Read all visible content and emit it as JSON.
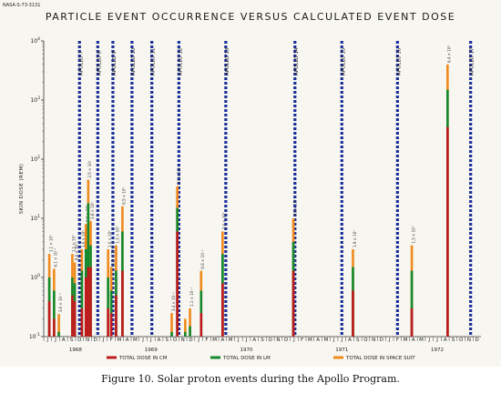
{
  "header": {
    "reference": "NASA-S-73-3131",
    "title": "PARTICLE EVENT OCCURRENCE VERSUS CALCULATED EVENT DOSE"
  },
  "caption": "Figure 10. Solar proton events during the Apollo Program.",
  "chart_data": {
    "type": "bar",
    "title": "PARTICLE EVENT OCCURRENCE VERSUS CALCULATED EVENT DOSE",
    "xlabel": "",
    "ylabel": "SKIN DOSE (REM)",
    "y_scale": "log",
    "ylim": [
      0.1,
      10000
    ],
    "y_ticks": [
      {
        "v": 0.1,
        "base": "10",
        "exp": "-1"
      },
      {
        "v": 1,
        "base": "10",
        "exp": "0"
      },
      {
        "v": 10,
        "base": "10",
        "exp": "1"
      },
      {
        "v": 100,
        "base": "10",
        "exp": "2"
      },
      {
        "v": 1000,
        "base": "10",
        "exp": "3"
      },
      {
        "v": 10000,
        "base": "10",
        "exp": "4"
      }
    ],
    "x_range": [
      0,
      54
    ],
    "month_labels": [
      "J",
      "J",
      "A",
      "S",
      "O",
      "N",
      "D",
      "J",
      "F",
      "M",
      "A",
      "M",
      "J",
      "J",
      "A",
      "S",
      "O",
      "N",
      "D",
      "J",
      "F",
      "M",
      "A",
      "M",
      "J",
      "J",
      "A",
      "S",
      "O",
      "N",
      "D",
      "J",
      "F",
      "M",
      "A",
      "M",
      "J",
      "J",
      "A",
      "S",
      "O",
      "N",
      "D",
      "J",
      "F",
      "M",
      "A",
      "M",
      "J",
      "J",
      "A",
      "S",
      "O",
      "N",
      "D"
    ],
    "year_labels": [
      {
        "label": "1968",
        "month": 3.5
      },
      {
        "label": "1969",
        "month": 13
      },
      {
        "label": "1970",
        "month": 25
      },
      {
        "label": "1971",
        "month": 37
      },
      {
        "label": "1972",
        "month": 49
      }
    ],
    "missions": [
      {
        "name": "APOLLO 7",
        "month": 4.0
      },
      {
        "name": "APOLLO 8",
        "month": 6.3
      },
      {
        "name": "APOLLO 9",
        "month": 8.2
      },
      {
        "name": "APOLLO 10",
        "month": 10.6
      },
      {
        "name": "APOLLO 11",
        "month": 13.1
      },
      {
        "name": "APOLLO 12",
        "month": 16.5
      },
      {
        "name": "APOLLO 13",
        "month": 22.4
      },
      {
        "name": "APOLLO 14",
        "month": 31.1
      },
      {
        "name": "APOLLO 15",
        "month": 37.0
      },
      {
        "name": "APOLLO 16",
        "month": 44.0
      },
      {
        "name": "APOLLO 17",
        "month": 53.2
      }
    ],
    "series": [
      {
        "name": "TOTAL DOSE IN CM",
        "color": "#c0191e"
      },
      {
        "name": "TOTAL DOSE IN LM",
        "color": "#138a2e"
      },
      {
        "name": "TOTAL DOSE IN SPACE SUIT",
        "color": "#f08a1c"
      }
    ],
    "events": [
      {
        "month": 0.2,
        "cm": 0.4,
        "lm": 1.0,
        "suit": 2.5,
        "label": "1.1 × 10⁰"
      },
      {
        "month": 0.8,
        "cm": 0.2,
        "lm": 0.6,
        "suit": 1.4,
        "label": "6.1 × 10⁻¹"
      },
      {
        "month": 1.4,
        "cm": 0.1,
        "lm": 0.12,
        "suit": 0.24,
        "label": "3.6 × 10⁻¹"
      },
      {
        "month": 3.1,
        "cm": 0.5,
        "lm": 1.0,
        "suit": 2.5,
        "label": "1.1 × 10⁰"
      },
      {
        "month": 3.4,
        "cm": 0.4,
        "lm": 0.8,
        "suit": 1.8,
        "label": "9.4 × 10⁻¹"
      },
      {
        "month": 4.3,
        "cm": 0.3,
        "lm": 1.3,
        "suit": 3.0,
        "label": "1.6 × 10⁰"
      },
      {
        "month": 4.8,
        "cm": 1.0,
        "lm": 3.0,
        "suit": 8.0,
        "label": "2.9 × 10⁰"
      },
      {
        "month": 5.1,
        "cm": 1.5,
        "lm": 18,
        "suit": 45,
        "label": "2.5 × 10¹"
      },
      {
        "month": 5.4,
        "cm": 1.5,
        "lm": 3.5,
        "suit": 9.0,
        "label": "3.8 × 10⁰"
      },
      {
        "month": 7.6,
        "cm": 0.3,
        "lm": 1.0,
        "suit": 3.0,
        "label": "1.0 × 10⁰"
      },
      {
        "month": 8.0,
        "cm": 0.25,
        "lm": 0.6,
        "suit": 1.5,
        "label": "6.9 × 10⁻¹"
      },
      {
        "month": 8.6,
        "cm": 0.5,
        "lm": 1.3,
        "suit": 3.5,
        "label": "1.3 × 10⁰"
      },
      {
        "month": 9.4,
        "cm": 1.3,
        "lm": 6.0,
        "suit": 16,
        "label": "6.5 × 10⁰"
      },
      {
        "month": 15.6,
        "cm": 0.1,
        "lm": 0.12,
        "suit": 0.25,
        "label": "3.4 × 10⁻¹"
      },
      {
        "month": 16.3,
        "cm": 6.0,
        "lm": 15,
        "suit": 35,
        "label": "2.0 × 10¹"
      },
      {
        "month": 17.3,
        "cm": 0.1,
        "lm": 0.12,
        "suit": 0.2,
        "label": ""
      },
      {
        "month": 17.9,
        "cm": 0.1,
        "lm": 0.15,
        "suit": 0.3,
        "label": "1.1 × 10⁻¹"
      },
      {
        "month": 19.3,
        "cm": 0.25,
        "lm": 0.6,
        "suit": 1.3,
        "label": "6.6 × 10⁻¹"
      },
      {
        "month": 22.0,
        "cm": 0.8,
        "lm": 2.5,
        "suit": 6.0,
        "label": "2.4 × 10⁰"
      },
      {
        "month": 30.9,
        "cm": 1.3,
        "lm": 4.0,
        "suit": 10,
        "label": "4.6 × 10⁰"
      },
      {
        "month": 38.4,
        "cm": 0.6,
        "lm": 1.5,
        "suit": 3.0,
        "label": "1.9 × 10⁰"
      },
      {
        "month": 45.8,
        "cm": 0.3,
        "lm": 1.3,
        "suit": 3.5,
        "label": "1.3 × 10⁰"
      },
      {
        "month": 50.3,
        "cm": 350,
        "lm": 1500,
        "suit": 4000,
        "label": "6.4 × 10²"
      }
    ]
  }
}
